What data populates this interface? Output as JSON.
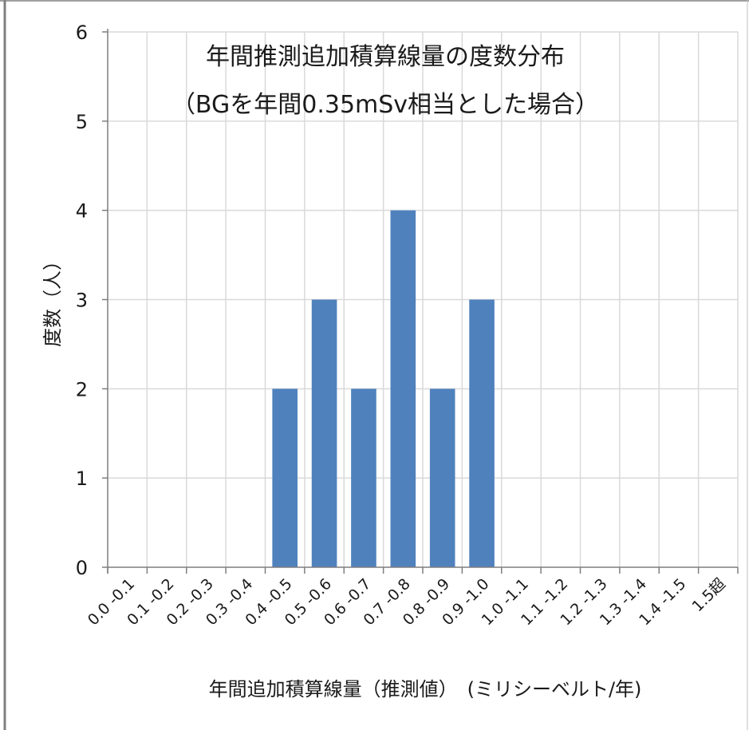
{
  "chart_data": {
    "type": "bar",
    "title": "年間推測追加積算線量の度数分布",
    "subtitle": "（BGを年間0.35mSv相当とした場合）",
    "xlabel": "年間追加積算線量（推測値）　(ミリシーベルト/年)",
    "ylabel": "度数（人）",
    "categories": [
      "0.0 -0.1",
      "0.1 -0.2",
      "0.2 -0.3",
      "0.3 -0.4",
      "0.4 -0.5",
      "0.5 -0.6",
      "0.6 -0.7",
      "0.7 -0.8",
      "0.8 -0.9",
      "0.9 -1.0",
      "1.0 -1.1",
      "1.1 -1.2",
      "1.2 -1.3",
      "1.3 -1.4",
      "1.4 -1.5",
      "1.5超"
    ],
    "values": [
      0,
      0,
      0,
      0,
      2,
      3,
      2,
      4,
      2,
      3,
      0,
      0,
      0,
      0,
      0,
      0
    ],
    "ylim": [
      0,
      6
    ],
    "yticks": [
      0,
      1,
      2,
      3,
      4,
      5,
      6
    ],
    "grid": true,
    "bar_color": "#4f81bd",
    "grid_color": "#d9d9d9"
  }
}
